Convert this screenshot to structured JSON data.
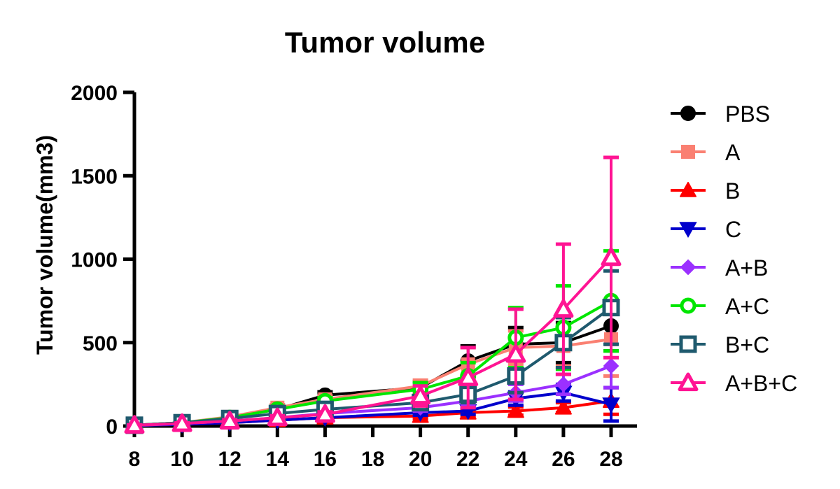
{
  "chart_data": {
    "type": "line",
    "title": "Tumor volume",
    "xlabel": "",
    "ylabel": "Tumor volume(mm3)",
    "x_ticks": [
      "8",
      "10",
      "12",
      "14",
      "16",
      "18",
      "20",
      "22",
      "24",
      "26",
      "28"
    ],
    "y_ticks": [
      "0",
      "500",
      "1000",
      "1500",
      "2000"
    ],
    "xlim": [
      8,
      28
    ],
    "ylim": [
      0,
      2000
    ],
    "grid": false,
    "legend_position": "right",
    "x": [
      8,
      10,
      12,
      14,
      16,
      20,
      22,
      24,
      26,
      28
    ],
    "series": [
      {
        "name": "PBS",
        "color": "#000000",
        "marker": "circle",
        "filled": true,
        "values": [
          5,
          20,
          50,
          100,
          185,
          230,
          390,
          490,
          500,
          600
        ],
        "errors": [
          2,
          5,
          12,
          18,
          20,
          35,
          90,
          100,
          120,
          150
        ]
      },
      {
        "name": "A",
        "color": "#fa8072",
        "marker": "square",
        "filled": true,
        "values": [
          5,
          20,
          55,
          110,
          160,
          240,
          370,
          470,
          480,
          520
        ],
        "errors": [
          2,
          5,
          12,
          18,
          20,
          35,
          100,
          100,
          120,
          220
        ]
      },
      {
        "name": "B",
        "color": "#ff0000",
        "marker": "triangle-up",
        "filled": true,
        "values": [
          3,
          10,
          20,
          35,
          50,
          60,
          80,
          90,
          110,
          150
        ],
        "errors": [
          1,
          3,
          6,
          10,
          12,
          15,
          20,
          25,
          30,
          80
        ]
      },
      {
        "name": "C",
        "color": "#0000cc",
        "marker": "triangle-down",
        "filled": true,
        "values": [
          3,
          10,
          20,
          35,
          50,
          80,
          90,
          165,
          200,
          130
        ],
        "errors": [
          1,
          3,
          6,
          10,
          12,
          15,
          20,
          40,
          50,
          100
        ]
      },
      {
        "name": "A+B",
        "color": "#9b30ff",
        "marker": "diamond",
        "filled": true,
        "values": [
          3,
          15,
          30,
          50,
          75,
          110,
          150,
          200,
          250,
          360
        ],
        "errors": [
          1,
          4,
          8,
          12,
          15,
          20,
          30,
          50,
          60,
          130
        ]
      },
      {
        "name": "A+C",
        "color": "#00e600",
        "marker": "circle",
        "filled": false,
        "values": [
          5,
          20,
          50,
          100,
          150,
          220,
          300,
          530,
          590,
          750
        ],
        "errors": [
          2,
          5,
          12,
          18,
          20,
          40,
          80,
          180,
          250,
          300
        ]
      },
      {
        "name": "B+C",
        "color": "#1f5a6e",
        "marker": "square",
        "filled": false,
        "values": [
          5,
          20,
          45,
          75,
          100,
          140,
          190,
          300,
          500,
          710
        ],
        "errors": [
          2,
          5,
          10,
          15,
          20,
          30,
          50,
          100,
          150,
          220
        ]
      },
      {
        "name": "A+B+C",
        "color": "#ff1493",
        "marker": "triangle-up",
        "filled": false,
        "values": [
          5,
          15,
          30,
          50,
          70,
          180,
          290,
          430,
          700,
          1010
        ],
        "errors": [
          2,
          4,
          8,
          12,
          15,
          60,
          180,
          270,
          390,
          600
        ]
      }
    ]
  }
}
